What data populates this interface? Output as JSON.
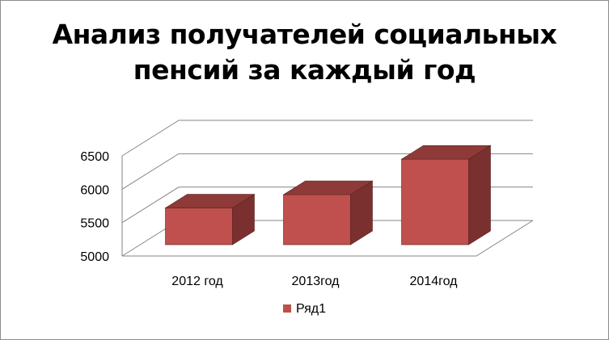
{
  "chart_data": {
    "type": "bar",
    "style": "3d-column",
    "title": "Анализ получателей социальных\nпенсий за каждый год",
    "categories": [
      "2012 год",
      "2013год",
      "2014год"
    ],
    "series": [
      {
        "name": "Ряд1",
        "values": [
          5550,
          5750,
          6280
        ],
        "color": "#c0504d"
      }
    ],
    "ylim": [
      5000,
      6500
    ],
    "yticks": [
      5000,
      5500,
      6000,
      6500
    ],
    "grid": true,
    "legend_position": "bottom"
  },
  "colors": {
    "bar_front": "#c0504d",
    "bar_top": "#8e3a38",
    "bar_side": "#7a302e",
    "grid": "#868686",
    "frame": "#8c8c8c"
  }
}
